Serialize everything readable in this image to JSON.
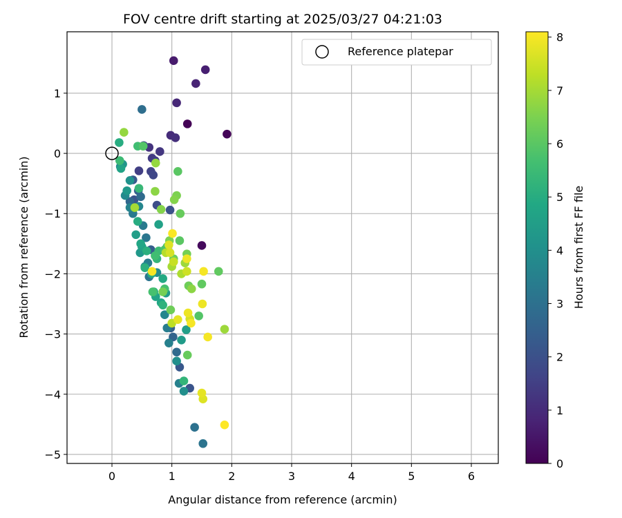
{
  "chart_data": {
    "type": "scatter",
    "title": "FOV centre drift starting at 2025/03/27 04:21:03",
    "xlabel": "Angular distance from reference (arcmin)",
    "ylabel": "Rotation from reference (arcmin)",
    "xlim": [
      -0.75,
      6.45
    ],
    "ylim": [
      -5.15,
      2.02
    ],
    "xticks": [
      0,
      1,
      2,
      3,
      4,
      5,
      6
    ],
    "yticks": [
      -5,
      -4,
      -3,
      -2,
      -1,
      0,
      1
    ],
    "xtick_labels": [
      "0",
      "1",
      "2",
      "3",
      "4",
      "5",
      "6"
    ],
    "ytick_labels": [
      "−5",
      "−4",
      "−3",
      "−2",
      "−1",
      "0",
      "1"
    ],
    "grid": true,
    "colormap": "viridis",
    "colorbar": {
      "label": "Hours from first FF file",
      "range": [
        0,
        8.1
      ],
      "ticks": [
        0,
        1,
        2,
        3,
        4,
        5,
        6,
        7,
        8
      ],
      "tick_labels": [
        "0",
        "1",
        "2",
        "3",
        "4",
        "5",
        "6",
        "7",
        "8"
      ]
    },
    "legend": {
      "position": "top-right",
      "entries": [
        "Reference platepar"
      ]
    },
    "reference_point": {
      "x": 0,
      "y": 0,
      "label": "Reference platepar"
    },
    "points": [
      {
        "x": 1.26,
        "y": 0.49,
        "hours": 0.05
      },
      {
        "x": 1.92,
        "y": 0.32,
        "hours": 0.1
      },
      {
        "x": 1.5,
        "y": -1.53,
        "hours": 0.2
      },
      {
        "x": 1.03,
        "y": 1.54,
        "hours": 0.6
      },
      {
        "x": 1.56,
        "y": 1.39,
        "hours": 0.7
      },
      {
        "x": 1.4,
        "y": 1.16,
        "hours": 0.8
      },
      {
        "x": 1.08,
        "y": 0.84,
        "hours": 0.9
      },
      {
        "x": 0.98,
        "y": 0.3,
        "hours": 1.0
      },
      {
        "x": 1.06,
        "y": 0.26,
        "hours": 1.1
      },
      {
        "x": 0.62,
        "y": 0.1,
        "hours": 1.2
      },
      {
        "x": 0.8,
        "y": 0.03,
        "hours": 1.3
      },
      {
        "x": 0.67,
        "y": -0.08,
        "hours": 1.4
      },
      {
        "x": 0.72,
        "y": -0.12,
        "hours": 1.5
      },
      {
        "x": 0.45,
        "y": -0.29,
        "hours": 1.5
      },
      {
        "x": 0.65,
        "y": -0.3,
        "hours": 1.6
      },
      {
        "x": 0.69,
        "y": -0.36,
        "hours": 1.7
      },
      {
        "x": 0.53,
        "y": 0.13,
        "hours": 1.8
      },
      {
        "x": 0.75,
        "y": -0.86,
        "hours": 1.9
      },
      {
        "x": 0.97,
        "y": -0.94,
        "hours": 2.0
      },
      {
        "x": 0.37,
        "y": -0.77,
        "hours": 2.1
      },
      {
        "x": 1.3,
        "y": -3.9,
        "hours": 2.1
      },
      {
        "x": 1.13,
        "y": -3.55,
        "hours": 2.2
      },
      {
        "x": 0.35,
        "y": -0.44,
        "hours": 2.3
      },
      {
        "x": 0.65,
        "y": -1.6,
        "hours": 2.4
      },
      {
        "x": 0.44,
        "y": -0.62,
        "hours": 2.5
      },
      {
        "x": 0.98,
        "y": -2.9,
        "hours": 2.5
      },
      {
        "x": 1.02,
        "y": -3.05,
        "hours": 2.6
      },
      {
        "x": 0.3,
        "y": -0.8,
        "hours": 2.7
      },
      {
        "x": 0.48,
        "y": -0.72,
        "hours": 2.8
      },
      {
        "x": 1.08,
        "y": -3.3,
        "hours": 2.8
      },
      {
        "x": 0.5,
        "y": 0.73,
        "hours": 2.9
      },
      {
        "x": 1.38,
        "y": -4.55,
        "hours": 3.0
      },
      {
        "x": 1.52,
        "y": -4.82,
        "hours": 3.1
      },
      {
        "x": 0.62,
        "y": -2.05,
        "hours": 3.1
      },
      {
        "x": 0.57,
        "y": -1.4,
        "hours": 3.2
      },
      {
        "x": 0.35,
        "y": -1.0,
        "hours": 3.3
      },
      {
        "x": 0.52,
        "y": -1.2,
        "hours": 3.3
      },
      {
        "x": 0.6,
        "y": -1.82,
        "hours": 3.4
      },
      {
        "x": 0.92,
        "y": -2.9,
        "hours": 3.4
      },
      {
        "x": 0.95,
        "y": -3.15,
        "hours": 3.5
      },
      {
        "x": 1.12,
        "y": -3.82,
        "hours": 3.5
      },
      {
        "x": 0.3,
        "y": -0.9,
        "hours": 3.6
      },
      {
        "x": 0.45,
        "y": -0.88,
        "hours": 3.7
      },
      {
        "x": 0.88,
        "y": -2.68,
        "hours": 3.7
      },
      {
        "x": 0.14,
        "y": -0.22,
        "hours": 3.8
      },
      {
        "x": 0.22,
        "y": -0.7,
        "hours": 3.8
      },
      {
        "x": 0.55,
        "y": -1.88,
        "hours": 3.9
      },
      {
        "x": 0.75,
        "y": -1.98,
        "hours": 3.9
      },
      {
        "x": 1.08,
        "y": -3.45,
        "hours": 4.0
      },
      {
        "x": 1.2,
        "y": -3.95,
        "hours": 4.0
      },
      {
        "x": 0.3,
        "y": -0.45,
        "hours": 4.1
      },
      {
        "x": 0.18,
        "y": -0.18,
        "hours": 4.2
      },
      {
        "x": 0.25,
        "y": -0.62,
        "hours": 4.3
      },
      {
        "x": 0.47,
        "y": -1.65,
        "hours": 4.3
      },
      {
        "x": 0.9,
        "y": -2.32,
        "hours": 4.4
      },
      {
        "x": 1.16,
        "y": -3.1,
        "hours": 4.4
      },
      {
        "x": 1.24,
        "y": -2.93,
        "hours": 4.5
      },
      {
        "x": 0.4,
        "y": -1.35,
        "hours": 4.5
      },
      {
        "x": 0.5,
        "y": -1.55,
        "hours": 4.6
      },
      {
        "x": 0.78,
        "y": -1.18,
        "hours": 4.6
      },
      {
        "x": 0.15,
        "y": -0.25,
        "hours": 4.7
      },
      {
        "x": 0.73,
        "y": -2.38,
        "hours": 4.7
      },
      {
        "x": 0.48,
        "y": -1.5,
        "hours": 4.8
      },
      {
        "x": 0.82,
        "y": -2.48,
        "hours": 4.8
      },
      {
        "x": 0.85,
        "y": -2.08,
        "hours": 4.9
      },
      {
        "x": 0.66,
        "y": -2.0,
        "hours": 4.9
      },
      {
        "x": 0.12,
        "y": 0.18,
        "hours": 5.0
      },
      {
        "x": 0.43,
        "y": -1.13,
        "hours": 5.0
      },
      {
        "x": 0.58,
        "y": -1.62,
        "hours": 5.1
      },
      {
        "x": 0.55,
        "y": -1.9,
        "hours": 5.1
      },
      {
        "x": 0.7,
        "y": -2.3,
        "hours": 5.2
      },
      {
        "x": 0.85,
        "y": -2.52,
        "hours": 5.2
      },
      {
        "x": 0.75,
        "y": -1.75,
        "hours": 5.3
      },
      {
        "x": 1.2,
        "y": -3.78,
        "hours": 5.3
      },
      {
        "x": 0.45,
        "y": -0.58,
        "hours": 5.4
      },
      {
        "x": 0.78,
        "y": -1.62,
        "hours": 5.5
      },
      {
        "x": 0.13,
        "y": -0.12,
        "hours": 5.5
      },
      {
        "x": 0.43,
        "y": 0.12,
        "hours": 5.6
      },
      {
        "x": 0.72,
        "y": -1.7,
        "hours": 5.6
      },
      {
        "x": 0.88,
        "y": -2.25,
        "hours": 5.7
      },
      {
        "x": 0.68,
        "y": -2.3,
        "hours": 5.7
      },
      {
        "x": 0.92,
        "y": -1.55,
        "hours": 5.8
      },
      {
        "x": 0.88,
        "y": -1.6,
        "hours": 5.8
      },
      {
        "x": 0.52,
        "y": 0.12,
        "hours": 5.9
      },
      {
        "x": 1.45,
        "y": -2.7,
        "hours": 5.9
      },
      {
        "x": 1.1,
        "y": -0.3,
        "hours": 6.0
      },
      {
        "x": 1.13,
        "y": -1.45,
        "hours": 6.0
      },
      {
        "x": 1.5,
        "y": -2.17,
        "hours": 6.1
      },
      {
        "x": 1.78,
        "y": -1.96,
        "hours": 6.1
      },
      {
        "x": 1.26,
        "y": -3.35,
        "hours": 6.2
      },
      {
        "x": 1.14,
        "y": -1.0,
        "hours": 6.2
      },
      {
        "x": 0.98,
        "y": -2.6,
        "hours": 6.3
      },
      {
        "x": 1.03,
        "y": -1.75,
        "hours": 6.3
      },
      {
        "x": 1.28,
        "y": -2.2,
        "hours": 6.3
      },
      {
        "x": 0.85,
        "y": -2.3,
        "hours": 6.4
      },
      {
        "x": 1.25,
        "y": -1.67,
        "hours": 6.4
      },
      {
        "x": 1.08,
        "y": -0.7,
        "hours": 6.5
      },
      {
        "x": 0.96,
        "y": -1.45,
        "hours": 6.5
      },
      {
        "x": 1.04,
        "y": -0.77,
        "hours": 6.6
      },
      {
        "x": 0.82,
        "y": -0.93,
        "hours": 6.6
      },
      {
        "x": 0.72,
        "y": -0.63,
        "hours": 6.7
      },
      {
        "x": 1.33,
        "y": -2.25,
        "hours": 6.7
      },
      {
        "x": 0.2,
        "y": 0.35,
        "hours": 6.8
      },
      {
        "x": 0.73,
        "y": -0.16,
        "hours": 6.8
      },
      {
        "x": 1.88,
        "y": -2.92,
        "hours": 6.9
      },
      {
        "x": 1.22,
        "y": -1.82,
        "hours": 6.9
      },
      {
        "x": 0.38,
        "y": -0.9,
        "hours": 7.0
      },
      {
        "x": 1.0,
        "y": -1.88,
        "hours": 7.0
      },
      {
        "x": 1.16,
        "y": -2.0,
        "hours": 7.1
      },
      {
        "x": 0.9,
        "y": -1.65,
        "hours": 7.2
      },
      {
        "x": 1.0,
        "y": -2.82,
        "hours": 7.3
      },
      {
        "x": 1.03,
        "y": -1.8,
        "hours": 7.4
      },
      {
        "x": 1.25,
        "y": -1.96,
        "hours": 7.5
      },
      {
        "x": 1.3,
        "y": -2.75,
        "hours": 7.6
      },
      {
        "x": 0.97,
        "y": -1.65,
        "hours": 7.6
      },
      {
        "x": 0.95,
        "y": -1.52,
        "hours": 7.7
      },
      {
        "x": 1.52,
        "y": -4.08,
        "hours": 7.7
      },
      {
        "x": 1.5,
        "y": -3.98,
        "hours": 7.8
      },
      {
        "x": 1.1,
        "y": -2.76,
        "hours": 7.8
      },
      {
        "x": 1.27,
        "y": -2.65,
        "hours": 7.9
      },
      {
        "x": 1.51,
        "y": -2.5,
        "hours": 7.9
      },
      {
        "x": 1.25,
        "y": -1.75,
        "hours": 7.9
      },
      {
        "x": 1.6,
        "y": -3.05,
        "hours": 8.0
      },
      {
        "x": 0.67,
        "y": -1.96,
        "hours": 8.0
      },
      {
        "x": 1.53,
        "y": -1.96,
        "hours": 8.0
      },
      {
        "x": 1.32,
        "y": -2.82,
        "hours": 8.0
      },
      {
        "x": 1.01,
        "y": -1.33,
        "hours": 8.05
      },
      {
        "x": 1.88,
        "y": -4.51,
        "hours": 8.1
      }
    ]
  }
}
